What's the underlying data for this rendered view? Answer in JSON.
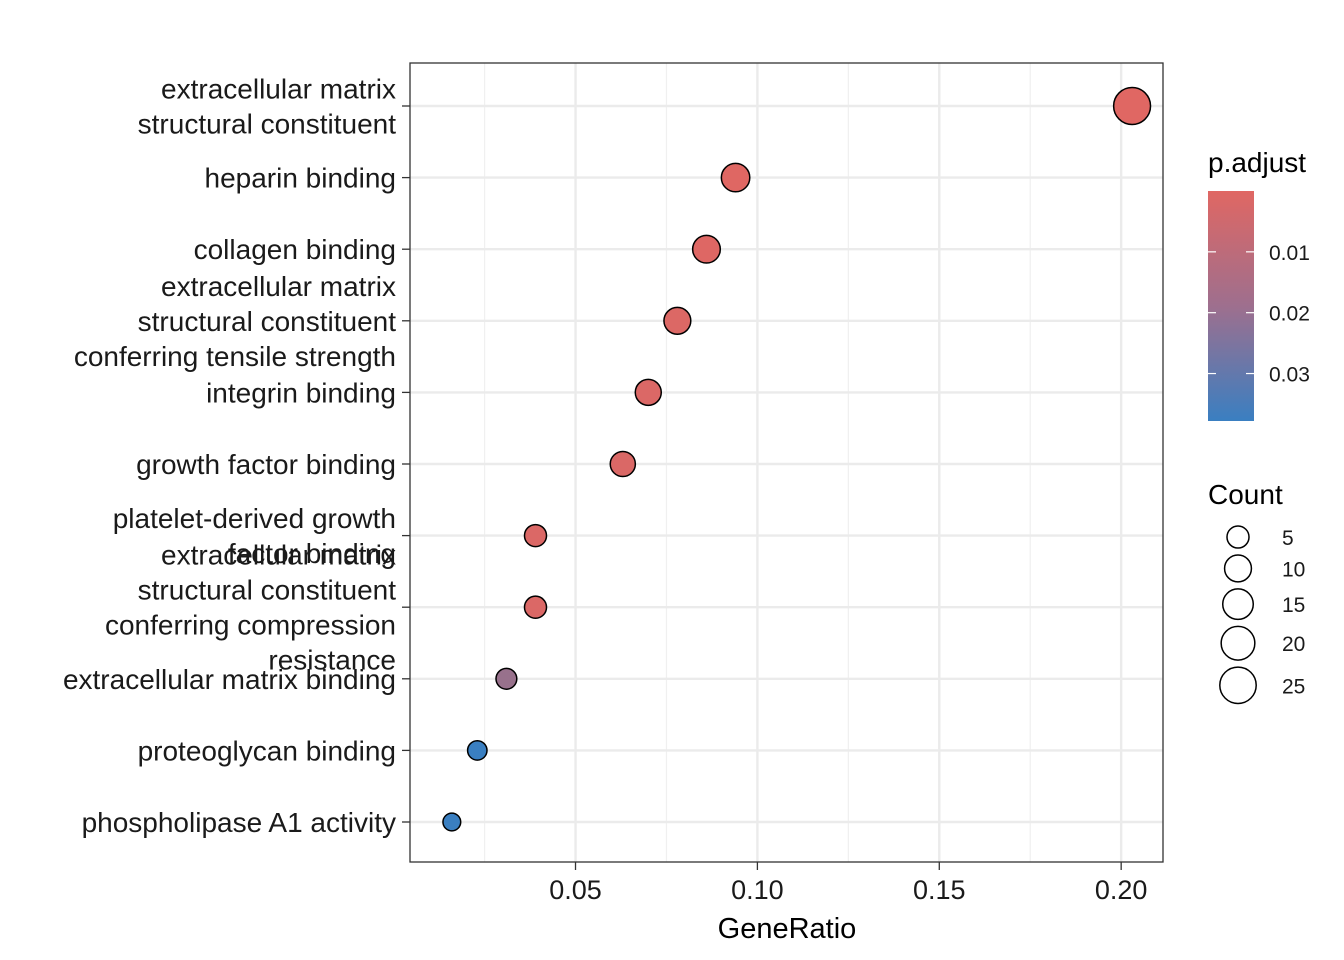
{
  "chart_data": {
    "type": "scatter",
    "xlabel": "GeneRatio",
    "ylabel": "",
    "xlim": [
      0.0045,
      0.2115
    ],
    "x_ticks": [
      0.05,
      0.1,
      0.15,
      0.2
    ],
    "x_tick_labels": [
      "0.05",
      "0.10",
      "0.15",
      "0.20"
    ],
    "grid": true,
    "categories": [
      [
        "extracellular matrix",
        "structural constituent"
      ],
      [
        "heparin binding"
      ],
      [
        "collagen binding"
      ],
      [
        "extracellular matrix",
        "structural constituent",
        "conferring tensile strength"
      ],
      [
        "integrin binding"
      ],
      [
        "growth factor binding"
      ],
      [
        "platelet-derived growth",
        "factor binding"
      ],
      [
        "extracellular matrix",
        "structural constituent",
        "conferring compression",
        "resistance"
      ],
      [
        "extracellular matrix binding"
      ],
      [
        "proteoglycan binding"
      ],
      [
        "phospholipase A1 activity"
      ]
    ],
    "points": [
      {
        "gene_ratio": 0.203,
        "count": 26,
        "p_adjust": 0.0001
      },
      {
        "gene_ratio": 0.094,
        "count": 12,
        "p_adjust": 0.0002
      },
      {
        "gene_ratio": 0.086,
        "count": 11,
        "p_adjust": 0.0005
      },
      {
        "gene_ratio": 0.078,
        "count": 10,
        "p_adjust": 0.0008
      },
      {
        "gene_ratio": 0.07,
        "count": 9,
        "p_adjust": 0.0011
      },
      {
        "gene_ratio": 0.063,
        "count": 8,
        "p_adjust": 0.0014
      },
      {
        "gene_ratio": 0.039,
        "count": 5,
        "p_adjust": 0.0012
      },
      {
        "gene_ratio": 0.039,
        "count": 5,
        "p_adjust": 0.0012
      },
      {
        "gene_ratio": 0.031,
        "count": 4,
        "p_adjust": 0.0165
      },
      {
        "gene_ratio": 0.023,
        "count": 3,
        "p_adjust": 0.0378
      },
      {
        "gene_ratio": 0.016,
        "count": 2,
        "p_adjust": 0.0378
      }
    ],
    "color_legend": {
      "title": "p.adjust",
      "range": [
        0.0,
        0.0378
      ],
      "ticks": [
        0.01,
        0.02,
        0.03
      ],
      "tick_labels": [
        "0.01",
        "0.02",
        "0.03"
      ],
      "low_color": "#e06763",
      "high_color": "#3a7fc1"
    },
    "size_legend": {
      "title": "Count",
      "values": [
        5,
        10,
        15,
        20,
        25
      ],
      "labels": [
        "5",
        "10",
        "15",
        "20",
        "25"
      ]
    },
    "legend_position": "right"
  }
}
